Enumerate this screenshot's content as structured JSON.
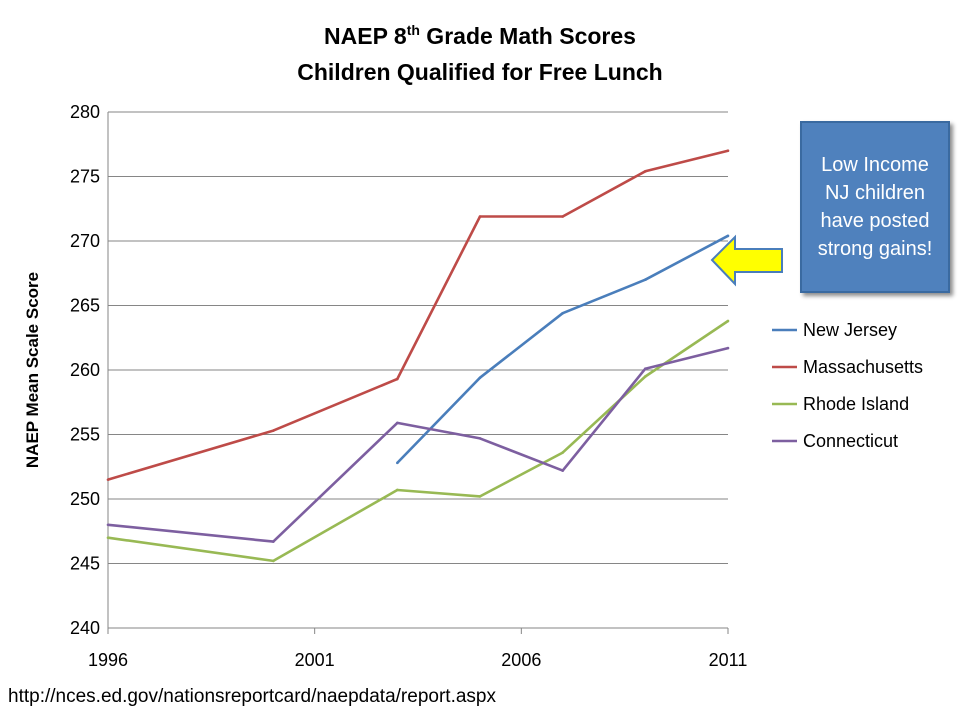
{
  "chart_data": {
    "type": "line",
    "title": {
      "prefix": "NAEP 8",
      "superscript": "th",
      "suffix": " Grade Math Scores",
      "subtitle": "Children Qualified for Free Lunch"
    },
    "xlabel": "",
    "ylabel": "NAEP Mean Scale Score",
    "xlim": [
      1996,
      2011
    ],
    "ylim": [
      240,
      280
    ],
    "xticks": [
      1996,
      2001,
      2006,
      2011
    ],
    "yticks": [
      240,
      245,
      250,
      255,
      260,
      265,
      270,
      275,
      280
    ],
    "grid": "horizontal",
    "legend_position": "right",
    "series": [
      {
        "name": "New Jersey",
        "color": "#4a7ebb",
        "x": [
          2003,
          2005,
          2007,
          2009,
          2011
        ],
        "values": [
          252.8,
          259.4,
          264.4,
          267.0,
          270.4
        ]
      },
      {
        "name": "Massachusetts",
        "color": "#be4b48",
        "x": [
          1996,
          2000,
          2003,
          2005,
          2007,
          2009,
          2011
        ],
        "values": [
          251.5,
          255.3,
          259.3,
          271.9,
          271.9,
          275.4,
          277.0
        ]
      },
      {
        "name": "Rhode Island",
        "color": "#98b954",
        "x": [
          1996,
          2000,
          2003,
          2005,
          2007,
          2009,
          2011
        ],
        "values": [
          247.0,
          245.2,
          250.7,
          250.2,
          253.6,
          259.5,
          263.8
        ]
      },
      {
        "name": "Connecticut",
        "color": "#7d5fa0",
        "x": [
          1996,
          2000,
          2003,
          2005,
          2007,
          2009,
          2011
        ],
        "values": [
          248.0,
          246.7,
          255.9,
          254.7,
          252.2,
          260.1,
          261.7
        ]
      }
    ]
  },
  "annotation": {
    "text": "Low Income NJ children have posted strong gains!",
    "arrow_color": "#ffff00"
  },
  "source": "http://nces.ed.gov/nationsreportcard/naepdata/report.aspx"
}
